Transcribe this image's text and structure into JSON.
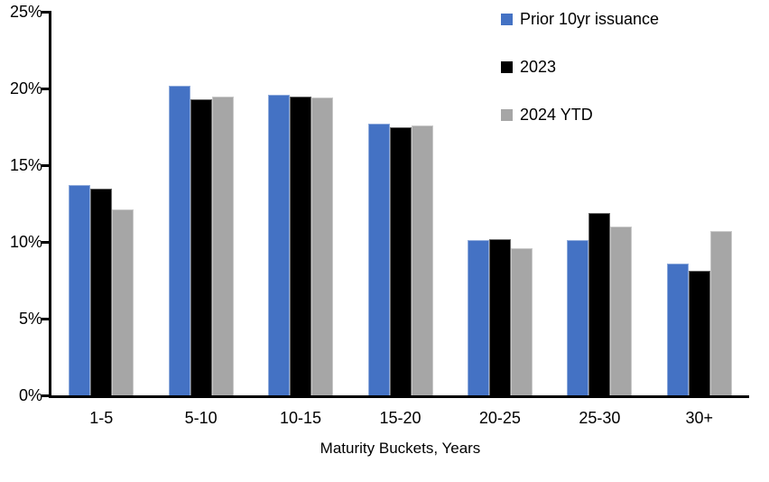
{
  "chart_data": {
    "type": "bar",
    "title": "",
    "xlabel": "Maturity Buckets, Years",
    "ylabel": "",
    "categories": [
      "1-5",
      "5-10",
      "10-15",
      "15-20",
      "20-25",
      "25-30",
      "30+"
    ],
    "series": [
      {
        "name": "Prior 10yr issuance",
        "color": "#4472C4",
        "values": [
          13.7,
          20.2,
          19.6,
          17.7,
          10.1,
          10.1,
          8.6
        ]
      },
      {
        "name": "2023",
        "color": "#000000",
        "values": [
          13.5,
          19.3,
          19.5,
          17.5,
          10.2,
          11.9,
          8.1
        ]
      },
      {
        "name": "2024 YTD",
        "color": "#A6A6A6",
        "values": [
          12.1,
          19.5,
          19.4,
          17.6,
          9.6,
          11.0,
          10.7
        ]
      }
    ],
    "ylim": [
      0,
      25
    ],
    "yticks": [
      {
        "label": "0%",
        "value": 0
      },
      {
        "label": "5%",
        "value": 5
      },
      {
        "label": "10%",
        "value": 10
      },
      {
        "label": "15%",
        "value": 15
      },
      {
        "label": "20%",
        "value": 20
      },
      {
        "label": "25%",
        "value": 25
      }
    ],
    "grid": false,
    "legend_position": "top-right",
    "axis_color": "#000000",
    "background_color": "#FFFFFF"
  }
}
